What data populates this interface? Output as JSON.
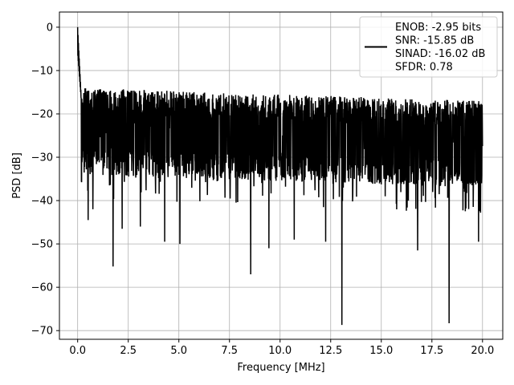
{
  "chart_data": {
    "type": "line",
    "xlabel": "Frequency [MHz]",
    "ylabel": "PSD [dB]",
    "xlim": [
      -0.9,
      21.0
    ],
    "ylim": [
      -72.0,
      3.5
    ],
    "xticks": [
      0.0,
      2.5,
      5.0,
      7.5,
      10.0,
      12.5,
      15.0,
      17.5,
      20.0
    ],
    "xtick_labels": [
      "0.0",
      "2.5",
      "5.0",
      "7.5",
      "10.0",
      "12.5",
      "15.0",
      "17.5",
      "20.0"
    ],
    "yticks": [
      0,
      -10,
      -20,
      -30,
      -40,
      -50,
      -60,
      -70
    ],
    "ytick_labels": [
      "0",
      "−10",
      "−20",
      "−30",
      "−40",
      "−50",
      "−60",
      "−70"
    ],
    "grid": true,
    "legend_position": "top-right",
    "legend_lines": [
      "ENOB: -2.95 bits",
      "SNR: -15.85 dB",
      "SINAD: -16.02 dB",
      "SFDR: 0.78"
    ],
    "series": [
      {
        "color": "#000000",
        "x_range": [
          0.0,
          20.0
        ],
        "num_points": 2048,
        "peak": {
          "x": 0.0,
          "y": 0.0
        },
        "band_upper": [
          -14,
          -15,
          -16,
          -17
        ],
        "band_lower": [
          -34,
          -35,
          -36,
          -37
        ],
        "notable_dips": [
          {
            "x": 0.52,
            "y": -44.5
          },
          {
            "x": 0.75,
            "y": -42.0
          },
          {
            "x": 1.75,
            "y": -55.2
          },
          {
            "x": 2.2,
            "y": -46.5
          },
          {
            "x": 3.1,
            "y": -46.0
          },
          {
            "x": 4.3,
            "y": -49.5
          },
          {
            "x": 5.05,
            "y": -50.0
          },
          {
            "x": 8.55,
            "y": -57.0
          },
          {
            "x": 9.45,
            "y": -51.0
          },
          {
            "x": 10.7,
            "y": -49.0
          },
          {
            "x": 12.25,
            "y": -49.5
          },
          {
            "x": 13.05,
            "y": -68.7
          },
          {
            "x": 16.8,
            "y": -51.5
          },
          {
            "x": 18.35,
            "y": -68.3
          },
          {
            "x": 19.8,
            "y": -49.5
          }
        ]
      }
    ]
  }
}
